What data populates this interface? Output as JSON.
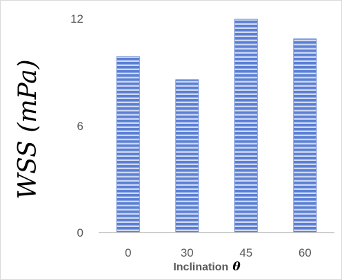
{
  "chart_data": {
    "type": "bar",
    "categories": [
      "0",
      "30",
      "45",
      "60"
    ],
    "values": [
      9.9,
      8.6,
      12.0,
      10.9
    ],
    "ylabel": "WSS (mPa)",
    "xlabel": "Inclination",
    "xlabel_symbol": "θ",
    "yticks": [
      "0",
      "6",
      "12"
    ],
    "ylim": [
      0,
      12
    ],
    "grid": false,
    "legend": "none",
    "bar_color": "#5b7fd4",
    "bar_stripe_color": "#cdd9f2",
    "axis_color": "#bfbfbf"
  }
}
